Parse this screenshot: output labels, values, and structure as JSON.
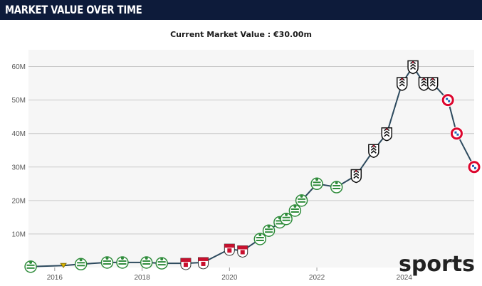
{
  "header": {
    "title": "MARKET VALUE OVER TIME"
  },
  "subtitle": "Current Market Value : €30.00m",
  "watermark": "sports",
  "colors": {
    "header_bg": "#0d1b3a",
    "line": "#2d4a5e",
    "plot_bg": "#f6f6f6",
    "grid": "#c9c9c9",
    "club_sporting": "#2e8b3a",
    "club_braga": "#c8102e",
    "club_fulham": "#111111",
    "club_bayern": "#dc052d"
  },
  "chart_data": {
    "type": "line",
    "title": "",
    "xlabel": "",
    "ylabel": "",
    "ylim": [
      0,
      65
    ],
    "xlim": [
      2015.4,
      2025.6
    ],
    "y_ticks": [
      {
        "value": 10,
        "label": "10M"
      },
      {
        "value": 20,
        "label": "20M"
      },
      {
        "value": 30,
        "label": "30M"
      },
      {
        "value": 40,
        "label": "40M"
      },
      {
        "value": 50,
        "label": "50M"
      },
      {
        "value": 60,
        "label": "60M"
      }
    ],
    "x_ticks": [
      {
        "value": 2016,
        "label": "2016"
      },
      {
        "value": 2018,
        "label": "2018"
      },
      {
        "value": 2020,
        "label": "2020"
      },
      {
        "value": 2022,
        "label": "2022"
      },
      {
        "value": 2024,
        "label": "2024"
      }
    ],
    "grid": true,
    "series": [
      {
        "points": [
          {
            "x": 2015.45,
            "y": 0.25,
            "club": "sporting"
          },
          {
            "x": 2016.2,
            "y": 0.6,
            "club": "other"
          },
          {
            "x": 2016.6,
            "y": 1.0,
            "club": "sporting"
          },
          {
            "x": 2017.2,
            "y": 1.5,
            "club": "sporting"
          },
          {
            "x": 2017.55,
            "y": 1.5,
            "club": "sporting"
          },
          {
            "x": 2018.1,
            "y": 1.5,
            "club": "sporting"
          },
          {
            "x": 2018.45,
            "y": 1.25,
            "club": "sporting"
          },
          {
            "x": 2019.0,
            "y": 1.25,
            "club": "braga"
          },
          {
            "x": 2019.4,
            "y": 1.5,
            "club": "braga"
          },
          {
            "x": 2020.0,
            "y": 5.5,
            "club": "braga"
          },
          {
            "x": 2020.3,
            "y": 5.0,
            "club": "braga"
          },
          {
            "x": 2020.7,
            "y": 8.5,
            "club": "sporting"
          },
          {
            "x": 2020.9,
            "y": 11.0,
            "club": "sporting"
          },
          {
            "x": 2021.15,
            "y": 13.5,
            "club": "sporting"
          },
          {
            "x": 2021.3,
            "y": 14.5,
            "club": "sporting"
          },
          {
            "x": 2021.5,
            "y": 17.0,
            "club": "sporting"
          },
          {
            "x": 2021.65,
            "y": 20.0,
            "club": "sporting"
          },
          {
            "x": 2022.0,
            "y": 25.0,
            "club": "sporting"
          },
          {
            "x": 2022.45,
            "y": 24.0,
            "club": "sporting"
          },
          {
            "x": 2022.9,
            "y": 27.5,
            "club": "fulham"
          },
          {
            "x": 2023.3,
            "y": 35.0,
            "club": "fulham"
          },
          {
            "x": 2023.6,
            "y": 40.0,
            "club": "fulham"
          },
          {
            "x": 2023.95,
            "y": 55.0,
            "club": "fulham"
          },
          {
            "x": 2024.2,
            "y": 60.0,
            "club": "fulham"
          },
          {
            "x": 2024.45,
            "y": 55.0,
            "club": "fulham"
          },
          {
            "x": 2024.65,
            "y": 55.0,
            "club": "fulham"
          },
          {
            "x": 2025.0,
            "y": 50.0,
            "club": "bayern"
          },
          {
            "x": 2025.2,
            "y": 40.0,
            "club": "bayern"
          },
          {
            "x": 2025.6,
            "y": 30.0,
            "club": "bayern"
          }
        ]
      }
    ]
  }
}
